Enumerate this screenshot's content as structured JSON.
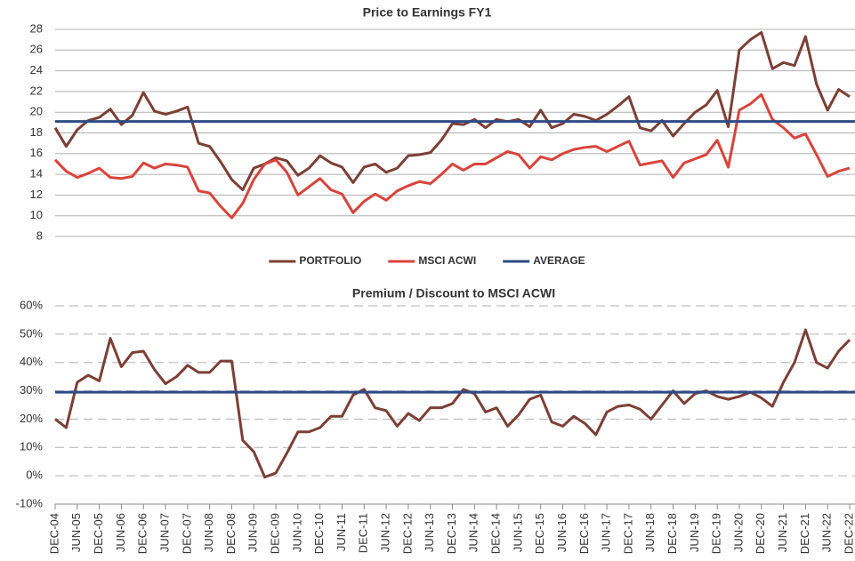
{
  "chart_data": [
    {
      "type": "line",
      "title": "Price to Earnings FY1",
      "ylim": [
        8,
        28
      ],
      "yticks": [
        8,
        10,
        12,
        14,
        16,
        18,
        20,
        22,
        24,
        26,
        28
      ],
      "grid": true,
      "legend": "bottom",
      "series": [
        {
          "name": "PORTFOLIO",
          "color": "#7b3f35",
          "values": [
            18.5,
            16.7,
            18.3,
            19.2,
            19.5,
            20.3,
            18.8,
            19.7,
            21.9,
            20.1,
            19.8,
            20.1,
            20.5,
            17.0,
            16.7,
            15.2,
            13.5,
            12.5,
            14.6,
            15.0,
            15.6,
            15.3,
            13.9,
            14.6,
            15.8,
            15.1,
            14.7,
            13.2,
            14.7,
            15.0,
            14.2,
            14.6,
            15.8,
            15.9,
            16.1,
            17.3,
            18.9,
            18.8,
            19.3,
            18.5,
            19.3,
            19.1,
            19.3,
            18.6,
            20.2,
            18.5,
            18.9,
            19.8,
            19.6,
            19.2,
            19.8,
            20.6,
            21.5,
            18.5,
            18.2,
            19.2,
            17.7,
            18.9,
            20.0,
            20.7,
            22.1,
            18.6,
            26.0,
            27.0,
            27.7,
            24.2,
            24.8,
            24.5,
            27.3,
            22.7,
            20.2,
            22.2,
            21.5
          ]
        },
        {
          "name": "MSCI ACWI",
          "color": "#d9433b",
          "values": [
            15.4,
            14.3,
            13.7,
            14.1,
            14.6,
            13.7,
            13.6,
            13.8,
            15.1,
            14.6,
            15.0,
            14.9,
            14.7,
            12.4,
            12.2,
            10.9,
            9.8,
            11.2,
            13.5,
            15.0,
            15.4,
            14.2,
            12.0,
            12.8,
            13.6,
            12.5,
            12.1,
            10.3,
            11.4,
            12.1,
            11.5,
            12.4,
            12.9,
            13.3,
            13.1,
            14.0,
            15.0,
            14.4,
            15.0,
            15.0,
            15.6,
            16.2,
            15.9,
            14.6,
            15.7,
            15.4,
            16.0,
            16.4,
            16.6,
            16.7,
            16.2,
            16.7,
            17.2,
            14.9,
            15.1,
            15.3,
            13.7,
            15.1,
            15.5,
            15.9,
            17.3,
            14.7,
            20.2,
            20.8,
            21.7,
            19.3,
            18.5,
            17.5,
            17.9,
            15.9,
            13.8,
            14.3,
            14.6
          ]
        },
        {
          "name": "AVERAGE",
          "color": "#2e4a86",
          "value": 19.1
        }
      ]
    },
    {
      "type": "line",
      "title": "Premium / Discount to MSCI ACWI",
      "categories": [
        "DEC-04",
        null,
        "JUN-05",
        null,
        "DEC-05",
        null,
        "JUN-06",
        null,
        "DEC-06",
        null,
        "JUN-07",
        null,
        "DEC-07",
        null,
        "JUN-08",
        null,
        "DEC-08",
        null,
        "JUN-09",
        null,
        "DEC-09",
        null,
        "JUN-10",
        null,
        "DEC-10",
        null,
        "JUN-11",
        null,
        "DEC-11",
        null,
        "JUN-12",
        null,
        "DEC-12",
        null,
        "JUN-13",
        null,
        "DEC-13",
        null,
        "JUN-14",
        null,
        "DEC-14",
        null,
        "JUN-15",
        null,
        "DEC-15",
        null,
        "JUN-16",
        null,
        "DEC-16",
        null,
        "JUN-17",
        null,
        "DEC-17",
        null,
        "JUN-18",
        null,
        "DEC-18",
        null,
        "JUN-19",
        null,
        "DEC-19",
        null,
        "JUN-20",
        null,
        "DEC-20",
        null,
        "JUN-21",
        null,
        "DEC-21",
        null,
        "JUN-22",
        null,
        "DEC-22"
      ],
      "ylim": [
        -10,
        60
      ],
      "yticks": [
        {
          "value": -10,
          "label": "-10%"
        },
        {
          "value": 0,
          "label": "0%"
        },
        {
          "value": 10,
          "label": "10%"
        },
        {
          "value": 20,
          "label": "20%"
        },
        {
          "value": 30,
          "label": "30%"
        },
        {
          "value": 40,
          "label": "40%"
        },
        {
          "value": 50,
          "label": "50%"
        },
        {
          "value": 60,
          "label": "60%"
        }
      ],
      "grid": true,
      "series": [
        {
          "color": "#7b3f35",
          "values": [
            20,
            17,
            33,
            35.5,
            33.5,
            48.5,
            38.5,
            43.5,
            44,
            37.5,
            32.5,
            35,
            39,
            36.5,
            36.5,
            40.5,
            40.5,
            12.5,
            8.5,
            -0.5,
            1,
            8,
            15.5,
            15.5,
            17,
            21,
            21,
            28.5,
            30.5,
            24,
            23,
            17.5,
            22,
            19.5,
            24,
            24,
            25.5,
            30.5,
            29,
            22.5,
            24,
            17.5,
            21.5,
            27,
            28.5,
            19,
            17.5,
            21,
            18.5,
            14.5,
            22.5,
            24.5,
            25,
            23.5,
            20,
            25,
            30,
            25.5,
            29,
            30,
            28,
            27,
            28,
            29.5,
            27.5,
            24.5,
            33,
            40,
            51.5,
            40,
            38,
            44,
            48
          ]
        },
        {
          "color": "#2e4a86",
          "value": 29.5
        }
      ]
    }
  ]
}
